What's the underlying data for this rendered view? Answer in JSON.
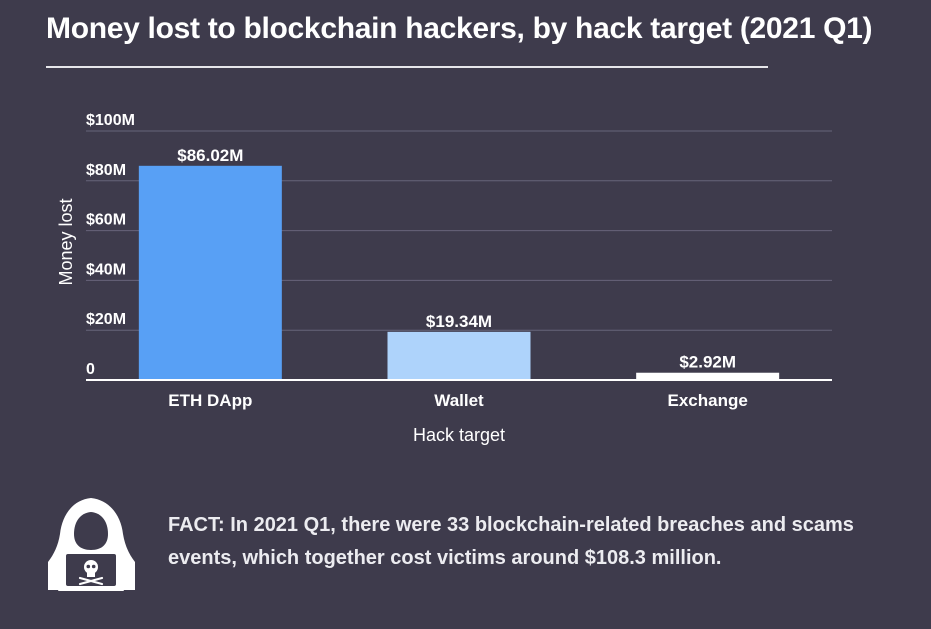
{
  "title": "Money lost to blockchain hackers, by hack target (2021 Q1)",
  "chart_data": {
    "type": "bar",
    "title": "Money lost to blockchain hackers, by hack target (2021 Q1)",
    "xlabel": "Hack target",
    "ylabel": "Money lost",
    "categories": [
      "ETH DApp",
      "Wallet",
      "Exchange"
    ],
    "values": [
      86.02,
      19.34,
      2.92
    ],
    "value_labels": [
      "$86.02M",
      "$19.34M",
      "$2.92M"
    ],
    "bar_colors": [
      "#58a0f5",
      "#aed3fb",
      "#ffffff"
    ],
    "ylim": [
      0,
      100
    ],
    "yticks": [
      0,
      20,
      40,
      60,
      80,
      100
    ],
    "ytick_labels": [
      "0",
      "$20M",
      "$40M",
      "$60M",
      "$80M",
      "$100M"
    ],
    "grid": true,
    "legend": "none"
  },
  "fact": {
    "label": "FACT:",
    "text": "In 2021 Q1, there were 33 blockchain-related breaches and scams events, which together cost victims around $108.3 million."
  },
  "icon": "hacker-icon",
  "colors": {
    "background": "#3e3b4c",
    "gridline": "#67647a",
    "axis": "#ffffff"
  }
}
